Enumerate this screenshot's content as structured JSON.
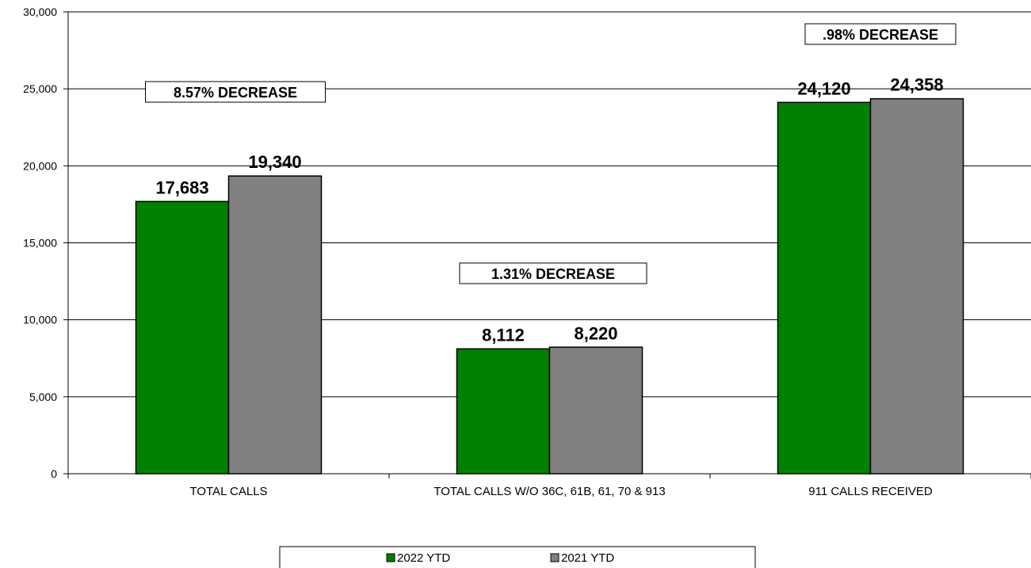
{
  "chart_data": {
    "type": "bar",
    "categories": [
      "TOTAL CALLS",
      "TOTAL CALLS W/O 36C, 61B, 61, 70 & 913",
      "911 CALLS RECEIVED"
    ],
    "series": [
      {
        "name": "2022 YTD",
        "color": "#008000",
        "values": [
          17683,
          8112,
          24120
        ],
        "labels": [
          "17,683",
          "8,112",
          "24,120"
        ]
      },
      {
        "name": "2021 YTD",
        "color": "#808080",
        "values": [
          19340,
          8220,
          24358
        ],
        "labels": [
          "19,340",
          "8,220",
          "24,358"
        ]
      }
    ],
    "ylim": [
      0,
      30000
    ],
    "yticks": [
      0,
      5000,
      10000,
      15000,
      20000,
      25000,
      30000
    ],
    "ytick_labels": [
      "0",
      "5,000",
      "10,000",
      "15,000",
      "20,000",
      "25,000",
      "30,000"
    ],
    "annotations": [
      {
        "text": "8.57% DECREASE",
        "category": 0
      },
      {
        "text": "1.31% DECREASE",
        "category": 1
      },
      {
        "text": ".98% DECREASE",
        "category": 2
      }
    ],
    "grid": true,
    "legend": "bottom"
  }
}
